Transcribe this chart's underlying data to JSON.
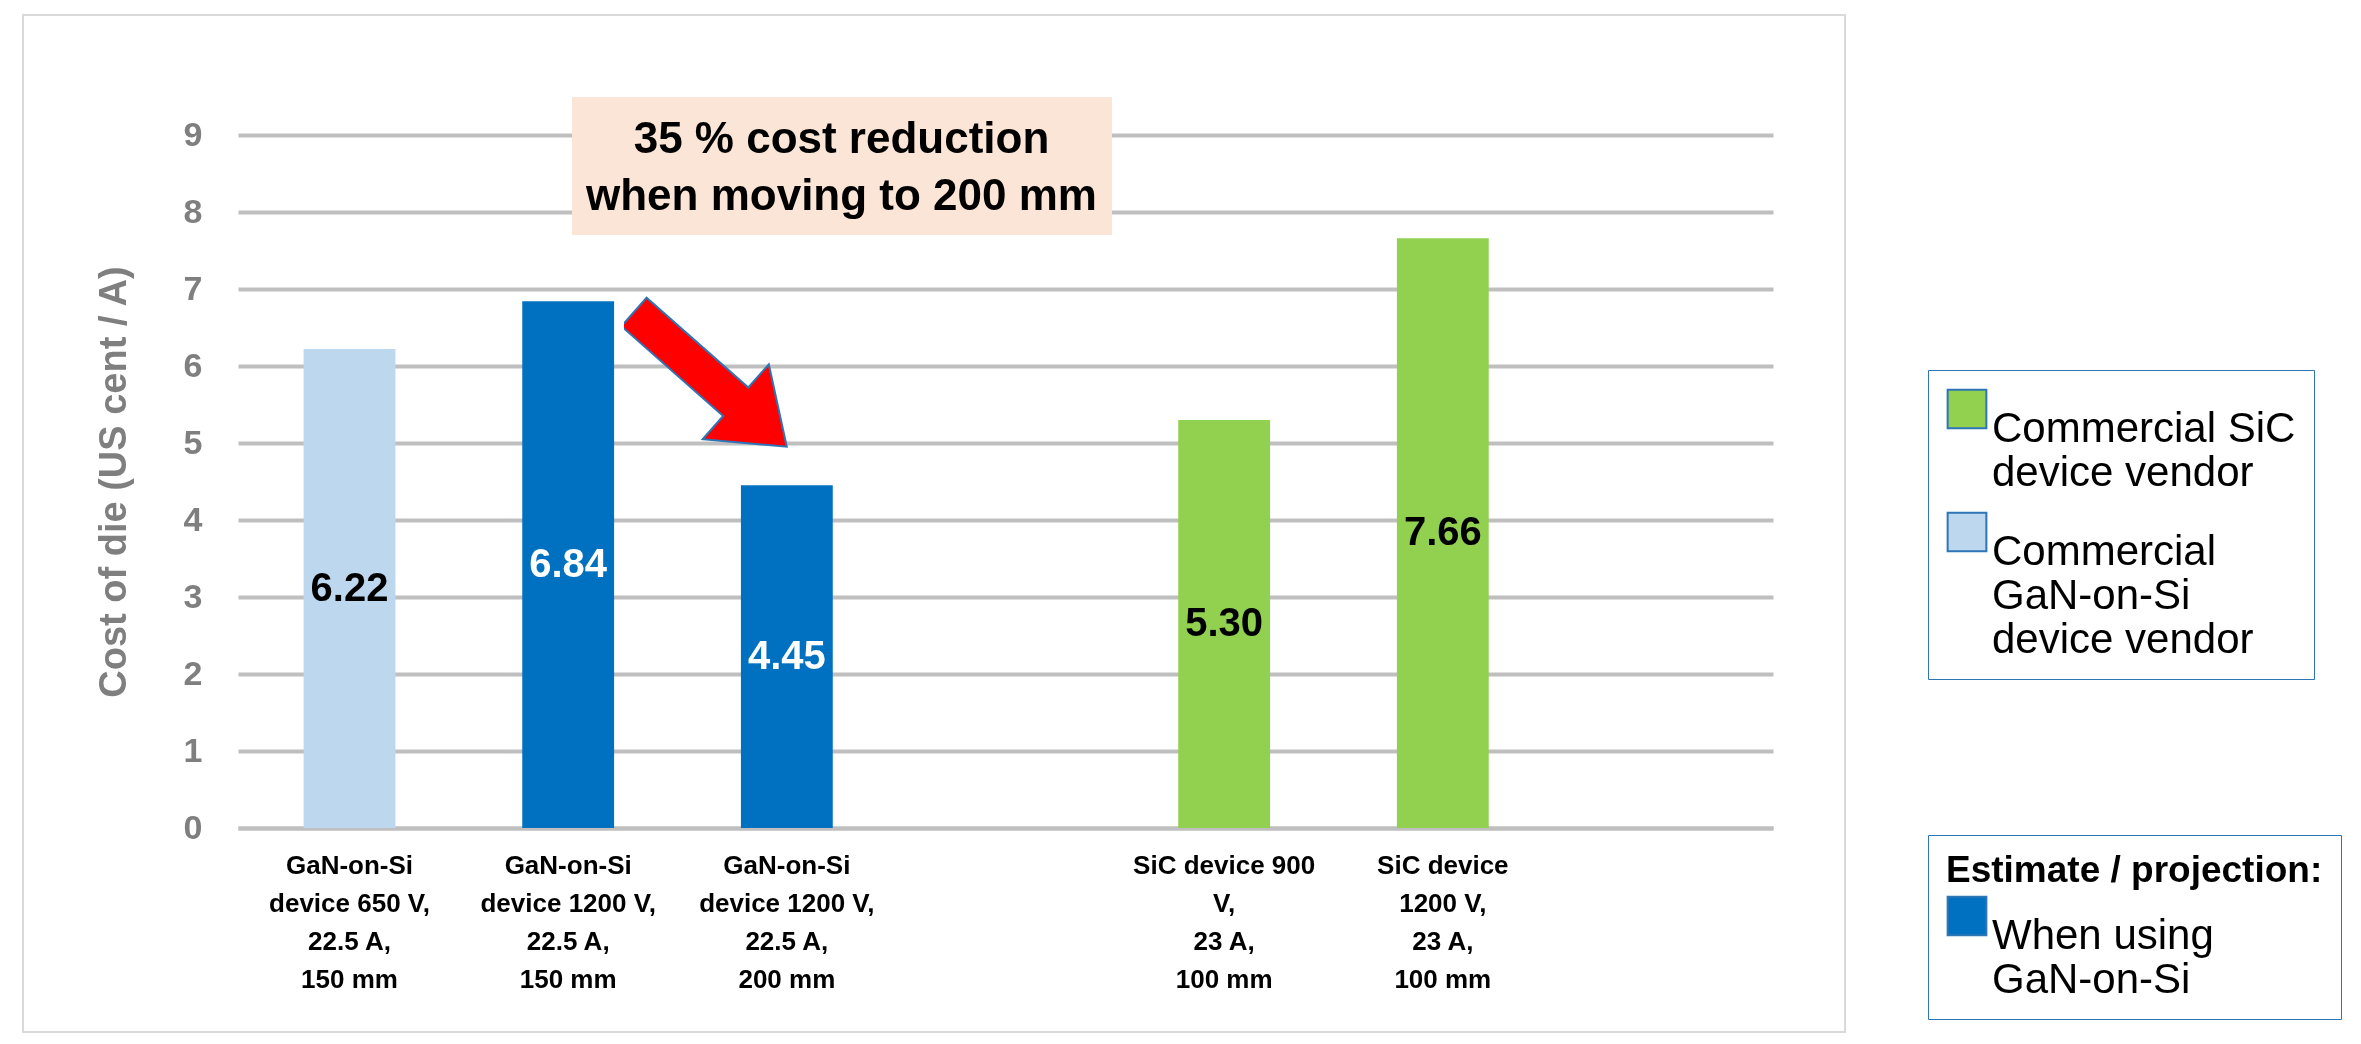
{
  "chart_data": {
    "type": "bar",
    "ylabel": "Cost of die (US cent / A)",
    "categories": [
      "GaN-on-Si device 650 V, 22.5 A, 150 mm",
      "GaN-on-Si device 1200 V, 22.5 A, 150 mm",
      "GaN-on-Si device 1200 V, 22.5 A, 200 mm",
      null,
      "SiC device 900 V, 23 A, 100 mm",
      "SiC device 1200 V, 23 A, 100 mm",
      null
    ],
    "series": [
      {
        "name": "Commercial SiC device vendor",
        "color": "#92d050",
        "values": [
          null,
          null,
          null,
          null,
          5.3,
          7.66,
          null
        ],
        "value_labels": [
          null,
          null,
          null,
          null,
          "5.30",
          "7.66",
          null
        ]
      },
      {
        "name": "Commercial GaN-on-Si device vendor",
        "color": "#bdd7ee",
        "values": [
          6.22,
          null,
          null,
          null,
          null,
          null,
          null
        ],
        "value_labels": [
          "6.22",
          null,
          null,
          null,
          null,
          null,
          null
        ]
      },
      {
        "name": "When using GaN-on-Si",
        "color": "#0070c0",
        "values": [
          null,
          6.84,
          4.45,
          null,
          null,
          null,
          null
        ],
        "value_labels": [
          null,
          "6.84",
          "4.45",
          null,
          null,
          null,
          null
        ]
      }
    ],
    "legend_title": "Estimate / projection:",
    "ylim": [
      0,
      9
    ],
    "yticks": [
      0,
      1,
      2,
      3,
      4,
      5,
      6,
      7,
      8,
      9
    ],
    "grid": "y",
    "legend": "right",
    "annotations": [
      "35 % cost reduction when moving to 200 mm"
    ]
  }
}
